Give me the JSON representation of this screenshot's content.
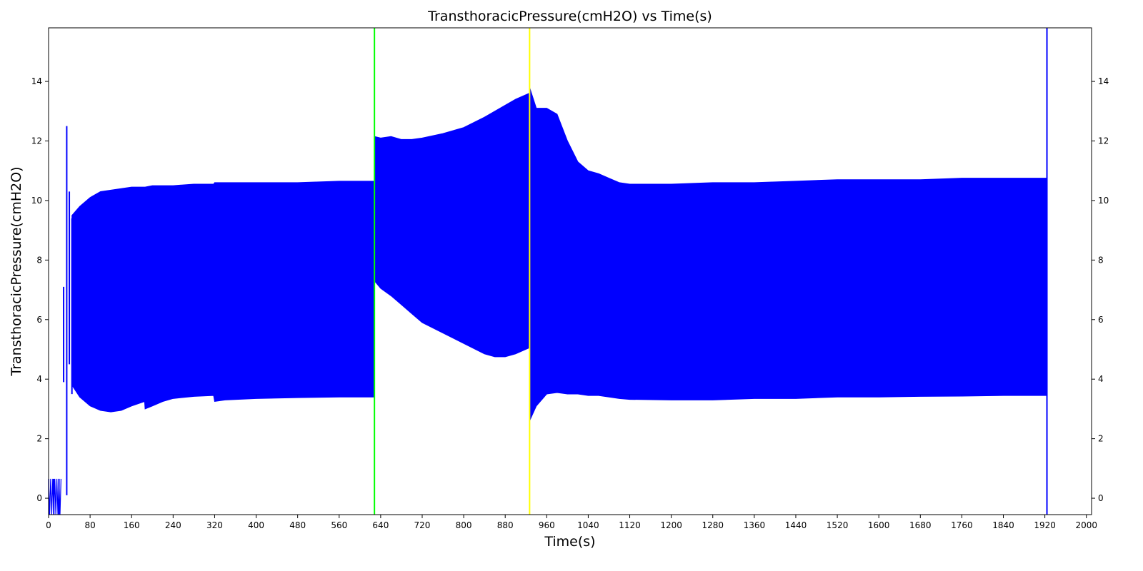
{
  "chart_data": {
    "type": "area",
    "title": "TransthoracicPressure(cmH2O) vs Time(s)",
    "xlabel": "Time(s)",
    "ylabel": "TransthoracicPressure(cmH2O)",
    "xlim": [
      0,
      2010
    ],
    "ylim": [
      -0.55,
      15.8
    ],
    "x_ticks": [
      0,
      80,
      160,
      240,
      320,
      400,
      480,
      560,
      640,
      720,
      800,
      880,
      960,
      1040,
      1120,
      1200,
      1280,
      1360,
      1440,
      1520,
      1600,
      1680,
      1760,
      1840,
      1920,
      2000
    ],
    "y_ticks": [
      0,
      2,
      4,
      6,
      8,
      10,
      12,
      14
    ],
    "grid": false,
    "right_axis_ticks": true,
    "colors": {
      "series": "#0000ff",
      "marker_green": "#00ff00",
      "marker_yellow": "#ffff00",
      "marker_blue": "#0000ff"
    },
    "vertical_markers": [
      {
        "x": 628,
        "color": "#00ff00"
      },
      {
        "x": 927,
        "color": "#ffff00"
      },
      {
        "x": 1924,
        "color": "#0000ff"
      }
    ],
    "early_oscillations": [
      {
        "x": 0,
        "min": -0.6,
        "max": 0.65
      },
      {
        "x": 10,
        "min": -0.6,
        "max": 0.65
      },
      {
        "x": 20,
        "min": -0.6,
        "max": 0.65
      },
      {
        "x": 29,
        "min": 3.9,
        "max": 7.1
      },
      {
        "x": 35,
        "min": 0.1,
        "max": 12.5
      },
      {
        "x": 40,
        "min": 4.5,
        "max": 10.3
      },
      {
        "x": 45,
        "min": 3.5,
        "max": 9.4
      }
    ],
    "series": [
      {
        "x": [
          45,
          60,
          80,
          100,
          120,
          140,
          160,
          185,
          186,
          200,
          220,
          240,
          280,
          318,
          320,
          340,
          400,
          480,
          560,
          627
        ],
        "max": [
          9.5,
          9.8,
          10.1,
          10.3,
          10.35,
          10.4,
          10.45,
          10.45,
          10.45,
          10.5,
          10.5,
          10.5,
          10.55,
          10.55,
          10.6,
          10.6,
          10.6,
          10.6,
          10.65,
          10.65
        ],
        "min": [
          3.8,
          3.4,
          3.1,
          2.95,
          2.9,
          2.95,
          3.1,
          3.25,
          3.0,
          3.1,
          3.25,
          3.35,
          3.42,
          3.45,
          3.25,
          3.3,
          3.35,
          3.38,
          3.4,
          3.4
        ]
      },
      {
        "x": [
          628,
          640,
          660,
          680,
          700,
          720,
          760,
          800,
          840,
          860,
          880,
          900,
          926
        ],
        "max": [
          12.15,
          12.1,
          12.15,
          12.05,
          12.05,
          12.1,
          12.25,
          12.45,
          12.8,
          13.0,
          13.2,
          13.4,
          13.6
        ],
        "min": [
          7.3,
          7.05,
          6.8,
          6.5,
          6.2,
          5.9,
          5.55,
          5.2,
          4.85,
          4.75,
          4.75,
          4.85,
          5.05
        ]
      },
      {
        "x": [
          927,
          940,
          960,
          980,
          1000,
          1020,
          1040,
          1060,
          1080,
          1100,
          1120,
          1200,
          1280,
          1360,
          1440,
          1520,
          1600,
          1680,
          1760,
          1840,
          1924
        ],
        "max": [
          13.8,
          13.1,
          13.1,
          12.9,
          12.0,
          11.3,
          11.0,
          10.9,
          10.75,
          10.6,
          10.55,
          10.55,
          10.6,
          10.6,
          10.65,
          10.7,
          10.7,
          10.7,
          10.75,
          10.75,
          10.75
        ],
        "min": [
          2.6,
          3.1,
          3.5,
          3.55,
          3.5,
          3.5,
          3.45,
          3.45,
          3.4,
          3.35,
          3.32,
          3.3,
          3.3,
          3.35,
          3.35,
          3.4,
          3.4,
          3.42,
          3.43,
          3.45,
          3.45
        ]
      }
    ]
  }
}
